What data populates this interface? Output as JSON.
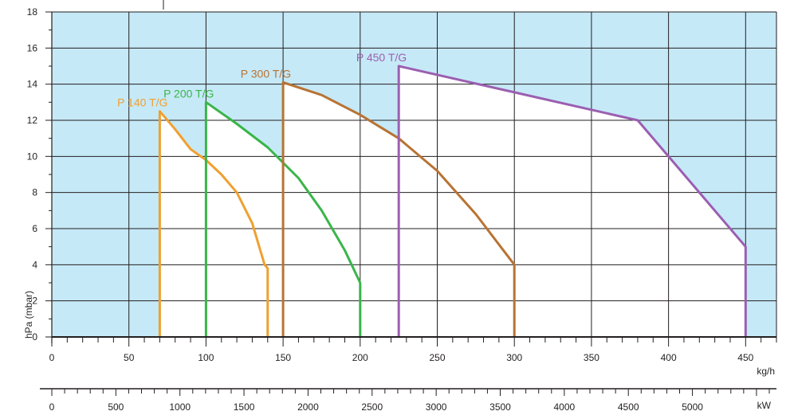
{
  "chart_data": {
    "type": "area",
    "title": "",
    "xlabel": "kg/h",
    "ylabel": "hPa (mbar)",
    "secondary_xlabel": "kW",
    "xlim": [
      0,
      470
    ],
    "ylim": [
      0,
      18
    ],
    "secondary_xlim": [
      0,
      5600
    ],
    "x_ticks": [
      0,
      50,
      100,
      150,
      200,
      250,
      300,
      350,
      400,
      450
    ],
    "y_ticks": [
      0,
      2,
      4,
      6,
      8,
      10,
      12,
      14,
      16,
      18
    ],
    "secondary_x_ticks": [
      0,
      500,
      1000,
      1500,
      2000,
      2500,
      3000,
      3500,
      4000,
      4500,
      5000
    ],
    "grid": true,
    "background_color": "#c6e9f7",
    "series": [
      {
        "name": "P 140 T/G",
        "color": "#f0a030",
        "points": [
          [
            70,
            0
          ],
          [
            70,
            12.5
          ],
          [
            80,
            11.5
          ],
          [
            90,
            10.4
          ],
          [
            100,
            9.8
          ],
          [
            110,
            9.0
          ],
          [
            120,
            8.0
          ],
          [
            130,
            6.3
          ],
          [
            138,
            4.0
          ],
          [
            140,
            3.8
          ],
          [
            140,
            0
          ]
        ]
      },
      {
        "name": "P 200 T/G",
        "color": "#3ab54a",
        "points": [
          [
            100,
            0
          ],
          [
            100,
            13.0
          ],
          [
            120,
            11.8
          ],
          [
            140,
            10.5
          ],
          [
            160,
            8.8
          ],
          [
            175,
            7.0
          ],
          [
            190,
            4.8
          ],
          [
            200,
            3.0
          ],
          [
            200,
            0
          ]
        ]
      },
      {
        "name": "P 300 T/G",
        "color": "#b87333",
        "points": [
          [
            150,
            0
          ],
          [
            150,
            14.1
          ],
          [
            175,
            13.4
          ],
          [
            200,
            12.3
          ],
          [
            225,
            11.0
          ],
          [
            250,
            9.2
          ],
          [
            275,
            6.8
          ],
          [
            300,
            4.0
          ],
          [
            300,
            0
          ]
        ]
      },
      {
        "name": "P 450 T/G",
        "color": "#9b5fb0",
        "points": [
          [
            225,
            0
          ],
          [
            225,
            15.0
          ],
          [
            380,
            12.0
          ],
          [
            450,
            5.0
          ],
          [
            450,
            0
          ]
        ]
      }
    ]
  }
}
